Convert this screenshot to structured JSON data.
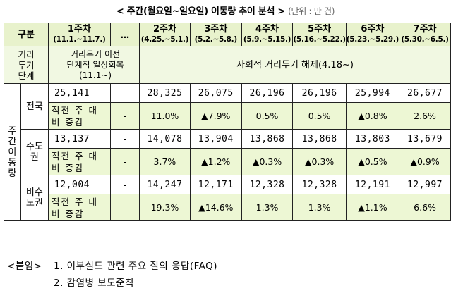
{
  "title": {
    "main": "< 주간(월요일~일요일) 이동량 추이 분석 >",
    "unit": "(단위 : 만 건)"
  },
  "header": {
    "category": "구분",
    "ellipsis": "…",
    "weeks": [
      {
        "label": "1주차",
        "range": "(11.1.~11.7.)"
      },
      {
        "label": "2주차",
        "range": "(4.25.~5.1.)"
      },
      {
        "label": "3주차",
        "range": "(5.2.~5.8.)"
      },
      {
        "label": "4주차",
        "range": "(5.9.~5.15.)"
      },
      {
        "label": "5주차",
        "range": "(5.16.~5.22.)"
      },
      {
        "label": "6주차",
        "range": "(5.23.~5.29.)"
      },
      {
        "label": "7주차",
        "range": "(5.30.~6.5.)"
      }
    ]
  },
  "distancing": {
    "label": "거리\n두기\n단계",
    "previous": "거리두기 이전\n단계적 일상회복\n(11.1~)",
    "current": "사회적 거리두기 해제(4.18~)"
  },
  "side_label": "주\n간\n이\n동\n량",
  "rate_label": "직전 주 대\n비 증감",
  "regions": [
    {
      "name": "전국",
      "values": [
        "25,141",
        "-",
        "28,325",
        "26,075",
        "26,196",
        "26,196",
        "25,994",
        "26,677"
      ],
      "rates": [
        "-",
        "11.0%",
        "▲7.9%",
        "0.5%",
        "0.5%",
        "▲0.8%",
        "2.6%"
      ]
    },
    {
      "name": "수도\n권",
      "values": [
        "13,137",
        "-",
        "14,078",
        "13,904",
        "13,868",
        "13,868",
        "13,803",
        "13,679"
      ],
      "rates": [
        "-",
        "3.7%",
        "▲1.2%",
        "▲0.3%",
        "▲0.3%",
        "▲0.5%",
        "▲0.9%"
      ]
    },
    {
      "name": "비수\n도권",
      "values": [
        "12,004",
        "-",
        "14,247",
        "12,171",
        "12,328",
        "12,328",
        "12,191",
        "12,997"
      ],
      "rates": [
        "-",
        "19.3%",
        "▲14.6%",
        "1.3%",
        "1.3%",
        "▲1.1%",
        "6.6%"
      ]
    }
  ],
  "attachments": {
    "label": "<붙임>",
    "items": [
      "1. 이부실드 관련 주요 질의 응답(FAQ)",
      "2. 감염병 보도준칙"
    ]
  }
}
